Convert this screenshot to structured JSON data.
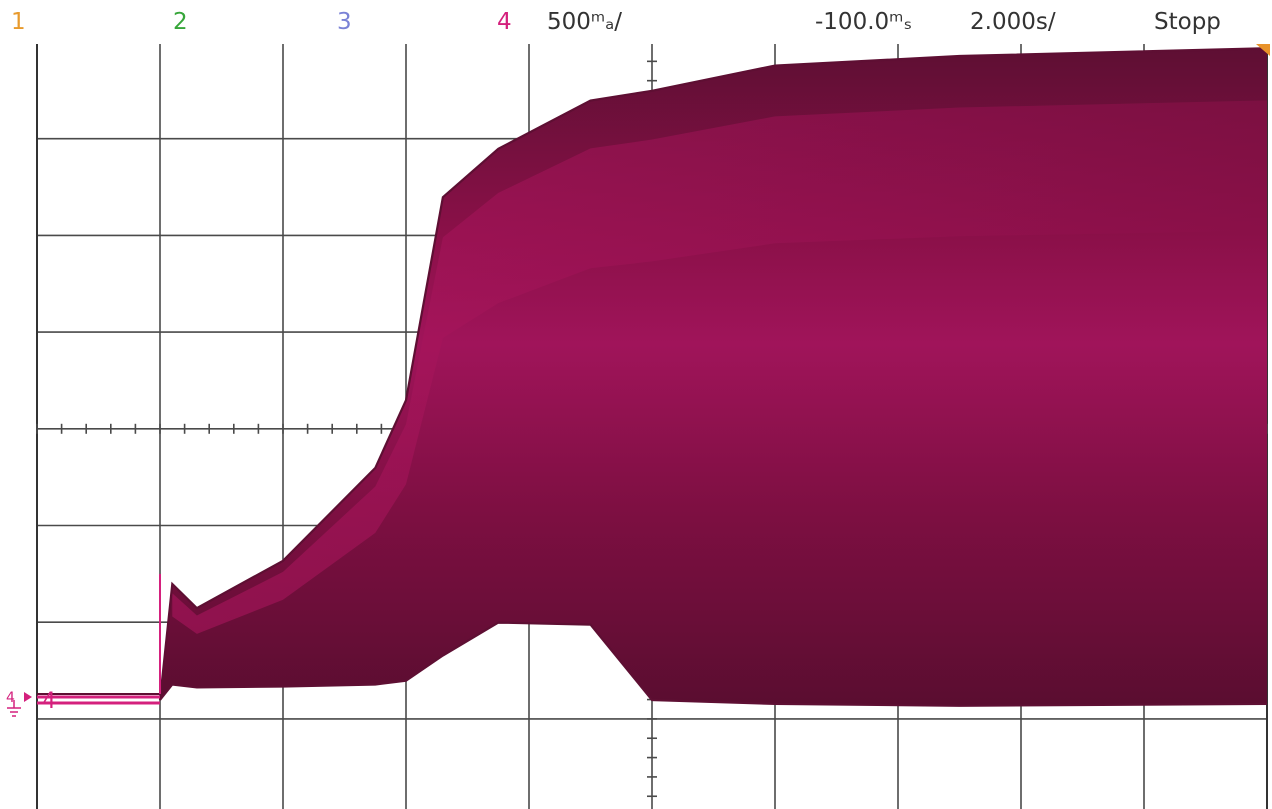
{
  "status_bar": {
    "ch1_label": "1",
    "ch2_label": "2",
    "ch3_label": "3",
    "ch4_label": "4",
    "ch4_scale": "500ᵐₐ/",
    "trigger_delay": "-100.0ᵐₛ",
    "timebase": "2.000s/",
    "run_state": "Stopp"
  },
  "colors": {
    "ch1": "#e89a2c",
    "ch2": "#37a63a",
    "ch3": "#7a82d6",
    "ch4": "#d4207d",
    "grid": "#4a4a4a",
    "waveform_dark": "#5e0f33",
    "waveform_mid": "#8a1048",
    "waveform_light": "#b01660",
    "trigger_marker": "#e8922a"
  },
  "ground_marker": {
    "label": "4",
    "icon": "ground-icon"
  },
  "chart_data": {
    "type": "area",
    "title": "",
    "x_unit": "s",
    "y_unit": "mA",
    "x_divisions": 10,
    "y_divisions": 8,
    "seconds_per_div": 2.0,
    "milliamps_per_div": 500,
    "grid": true,
    "x": [
      -10.0,
      -8.0,
      -7.8,
      -7.4,
      -6.0,
      -4.5,
      -4.0,
      -3.4,
      -2.5,
      -1.0,
      0.0,
      2.0,
      5.0,
      10.0
    ],
    "series": [
      {
        "values": [
          0,
          0,
          600,
          475,
          720,
          1200,
          1550,
          2600,
          2850,
          3100,
          3150,
          3280,
          3330,
          3370
        ]
      },
      {
        "values": [
          0,
          0,
          80,
          65,
          70,
          80,
          100,
          230,
          400,
          390,
          0,
          -20,
          -30,
          -20
        ]
      }
    ]
  }
}
